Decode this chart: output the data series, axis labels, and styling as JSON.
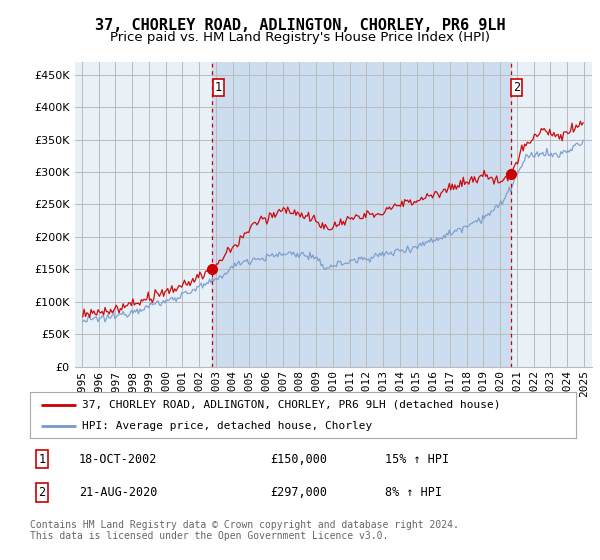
{
  "title": "37, CHORLEY ROAD, ADLINGTON, CHORLEY, PR6 9LH",
  "subtitle": "Price paid vs. HM Land Registry's House Price Index (HPI)",
  "ylim": [
    0,
    470000
  ],
  "yticks": [
    0,
    50000,
    100000,
    150000,
    200000,
    250000,
    300000,
    350000,
    400000,
    450000
  ],
  "xlim_start": 1994.58,
  "xlim_end": 2025.5,
  "background_color": "#ffffff",
  "plot_bg_color": "#e8f0f8",
  "shade_color": "#ccddf0",
  "grid_color": "#bbbbbb",
  "sale1_x": 2002.79,
  "sale1_y": 150000,
  "sale2_x": 2020.62,
  "sale2_y": 297000,
  "sale1_label": "18-OCT-2002",
  "sale1_price": "£150,000",
  "sale1_hpi": "15% ↑ HPI",
  "sale2_label": "21-AUG-2020",
  "sale2_price": "£297,000",
  "sale2_hpi": "8% ↑ HPI",
  "legend_house": "37, CHORLEY ROAD, ADLINGTON, CHORLEY, PR6 9LH (detached house)",
  "legend_hpi": "HPI: Average price, detached house, Chorley",
  "footer": "Contains HM Land Registry data © Crown copyright and database right 2024.\nThis data is licensed under the Open Government Licence v3.0.",
  "line_house_color": "#cc0000",
  "line_hpi_color": "#7799cc",
  "marker_color": "#cc0000",
  "vline_color": "#cc0000",
  "title_fontsize": 11,
  "subtitle_fontsize": 9.5,
  "tick_fontsize": 8,
  "legend_fontsize": 8,
  "footer_fontsize": 7
}
